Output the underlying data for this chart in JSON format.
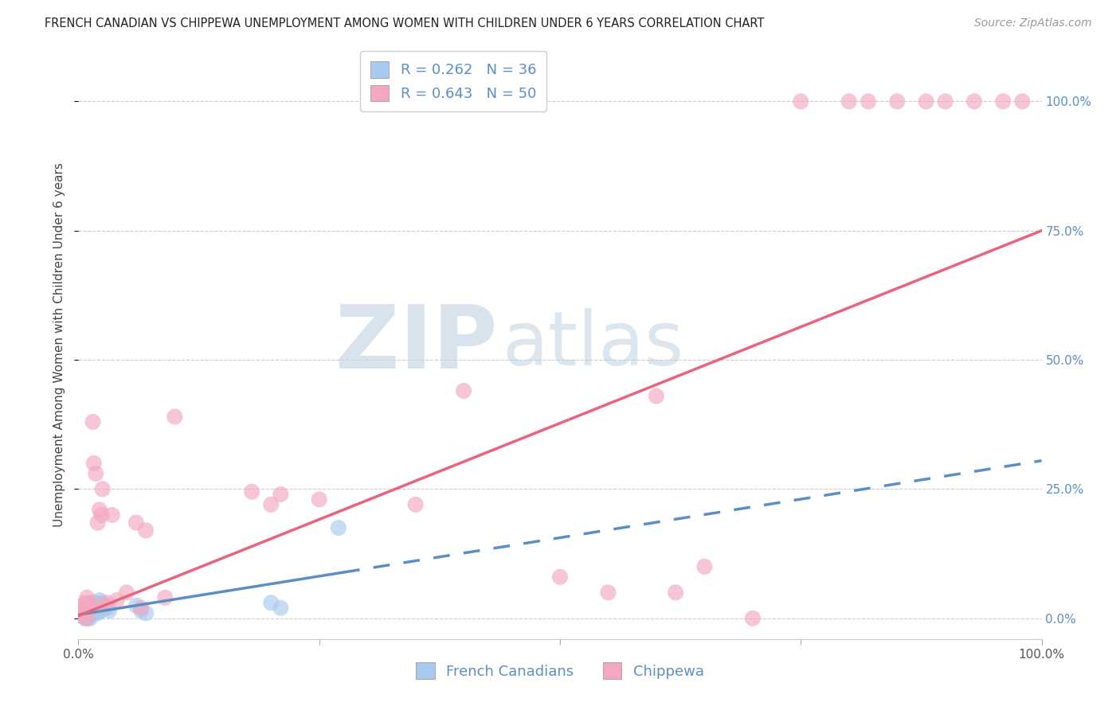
{
  "title": "FRENCH CANADIAN VS CHIPPEWA UNEMPLOYMENT AMONG WOMEN WITH CHILDREN UNDER 6 YEARS CORRELATION CHART",
  "source": "Source: ZipAtlas.com",
  "ylabel": "Unemployment Among Women with Children Under 6 years",
  "xlim": [
    0.0,
    1.0
  ],
  "ylim": [
    -0.04,
    1.1
  ],
  "yticks": [
    0.0,
    0.25,
    0.5,
    0.75,
    1.0
  ],
  "ytick_labels": [
    "0.0%",
    "25.0%",
    "50.0%",
    "75.0%",
    "100.0%"
  ],
  "xticks": [
    0.0,
    0.25,
    0.5,
    0.75,
    1.0
  ],
  "xtick_labels": [
    "0.0%",
    "",
    "",
    "",
    "100.0%"
  ],
  "french_R": "0.262",
  "french_N": "36",
  "chippewa_R": "0.643",
  "chippewa_N": "50",
  "french_color": "#a8caee",
  "chippewa_color": "#f4a8c0",
  "french_line_color": "#5b8fc4",
  "chippewa_line_color": "#e8637e",
  "background_color": "#ffffff",
  "french_scatter_x": [
    0.002,
    0.003,
    0.004,
    0.005,
    0.006,
    0.007,
    0.007,
    0.008,
    0.009,
    0.01,
    0.01,
    0.011,
    0.012,
    0.012,
    0.013,
    0.014,
    0.015,
    0.016,
    0.017,
    0.018,
    0.019,
    0.02,
    0.021,
    0.022,
    0.023,
    0.025,
    0.026,
    0.028,
    0.03,
    0.032,
    0.06,
    0.065,
    0.07,
    0.2,
    0.21,
    0.27
  ],
  "french_scatter_y": [
    0.01,
    0.005,
    0.015,
    0.02,
    0.005,
    0.01,
    0.0,
    0.008,
    0.012,
    0.0,
    0.025,
    0.005,
    0.01,
    0.0,
    0.022,
    0.018,
    0.03,
    0.025,
    0.02,
    0.03,
    0.012,
    0.01,
    0.028,
    0.035,
    0.015,
    0.03,
    0.025,
    0.02,
    0.02,
    0.015,
    0.025,
    0.015,
    0.01,
    0.03,
    0.02,
    0.175
  ],
  "chippewa_scatter_x": [
    0.002,
    0.003,
    0.004,
    0.005,
    0.006,
    0.007,
    0.008,
    0.009,
    0.01,
    0.011,
    0.012,
    0.013,
    0.015,
    0.016,
    0.018,
    0.02,
    0.022,
    0.024,
    0.025,
    0.026,
    0.03,
    0.035,
    0.04,
    0.05,
    0.06,
    0.065,
    0.07,
    0.09,
    0.1,
    0.18,
    0.2,
    0.21,
    0.25,
    0.35,
    0.4,
    0.5,
    0.55,
    0.6,
    0.62,
    0.65,
    0.7,
    0.75,
    0.8,
    0.82,
    0.85,
    0.88,
    0.9,
    0.93,
    0.96,
    0.98
  ],
  "chippewa_scatter_y": [
    0.02,
    0.01,
    0.005,
    0.025,
    0.015,
    0.03,
    0.0,
    0.04,
    0.01,
    0.025,
    0.03,
    0.02,
    0.38,
    0.3,
    0.28,
    0.185,
    0.21,
    0.2,
    0.25,
    0.025,
    0.03,
    0.2,
    0.035,
    0.05,
    0.185,
    0.02,
    0.17,
    0.04,
    0.39,
    0.245,
    0.22,
    0.24,
    0.23,
    0.22,
    0.44,
    0.08,
    0.05,
    0.43,
    0.05,
    0.1,
    0.0,
    1.0,
    1.0,
    1.0,
    1.0,
    1.0,
    1.0,
    1.0,
    1.0,
    1.0
  ],
  "french_trend_solid_x0": 0.0,
  "french_trend_solid_x1": 0.275,
  "french_trend_y0": 0.007,
  "french_trend_y1_full": 0.305,
  "chippewa_trend_y0": 0.005,
  "chippewa_trend_y1": 0.75,
  "title_fontsize": 10.5,
  "axis_label_fontsize": 11,
  "tick_fontsize": 11,
  "legend_fontsize": 13,
  "source_fontsize": 10,
  "right_tick_color": "#5b8fc4",
  "legend_text_color": "#5b8fc4"
}
